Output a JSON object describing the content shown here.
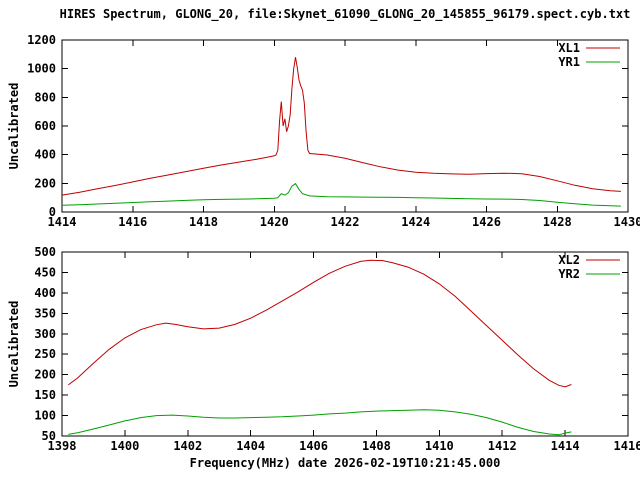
{
  "figure_title": "HIRES Spectrum, GLONG_20, file:Skynet_61090_GLONG_20_145855_96179.spect.cyb.txt",
  "colors": {
    "background": "#ffffff",
    "axis": "#000000",
    "xl_line": "#c00000",
    "yr_line": "#00a000"
  },
  "chart_data": [
    {
      "type": "line",
      "ylabel": "Uncalibrated",
      "xlim": [
        1414,
        1430
      ],
      "ylim": [
        0,
        1200
      ],
      "xticks": [
        1414,
        1416,
        1418,
        1420,
        1422,
        1424,
        1426,
        1428,
        1430
      ],
      "yticks": [
        0,
        200,
        400,
        600,
        800,
        1000,
        1200
      ],
      "grid": false,
      "legend_position": "top-right",
      "series": [
        {
          "name": "XL1",
          "color": "#c00000",
          "points": [
            [
              1414.0,
              118
            ],
            [
              1414.5,
              138
            ],
            [
              1415,
              162
            ],
            [
              1415.5,
              185
            ],
            [
              1416,
              210
            ],
            [
              1416.5,
              235
            ],
            [
              1417,
              258
            ],
            [
              1417.5,
              282
            ],
            [
              1418,
              305
            ],
            [
              1418.5,
              328
            ],
            [
              1419,
              348
            ],
            [
              1419.5,
              368
            ],
            [
              1419.8,
              382
            ],
            [
              1420.0,
              392
            ],
            [
              1420.05,
              398
            ],
            [
              1420.1,
              430
            ],
            [
              1420.15,
              640
            ],
            [
              1420.2,
              770
            ],
            [
              1420.25,
              600
            ],
            [
              1420.3,
              650
            ],
            [
              1420.35,
              560
            ],
            [
              1420.4,
              600
            ],
            [
              1420.45,
              680
            ],
            [
              1420.5,
              860
            ],
            [
              1420.55,
              1000
            ],
            [
              1420.6,
              1080
            ],
            [
              1420.65,
              1010
            ],
            [
              1420.7,
              920
            ],
            [
              1420.75,
              880
            ],
            [
              1420.8,
              850
            ],
            [
              1420.85,
              760
            ],
            [
              1420.9,
              560
            ],
            [
              1420.95,
              430
            ],
            [
              1421.0,
              408
            ],
            [
              1421.5,
              398
            ],
            [
              1422,
              375
            ],
            [
              1422.5,
              345
            ],
            [
              1423,
              315
            ],
            [
              1423.5,
              292
            ],
            [
              1424,
              278
            ],
            [
              1424.5,
              270
            ],
            [
              1425,
              266
            ],
            [
              1425.5,
              263
            ],
            [
              1426,
              268
            ],
            [
              1426.5,
              271
            ],
            [
              1427,
              267
            ],
            [
              1427.5,
              248
            ],
            [
              1428,
              218
            ],
            [
              1428.5,
              186
            ],
            [
              1429,
              162
            ],
            [
              1429.5,
              148
            ],
            [
              1429.8,
              144
            ]
          ]
        },
        {
          "name": "YR1",
          "color": "#00a000",
          "points": [
            [
              1414,
              47
            ],
            [
              1414.5,
              51
            ],
            [
              1415,
              56
            ],
            [
              1415.5,
              61
            ],
            [
              1416,
              66
            ],
            [
              1416.5,
              71
            ],
            [
              1417,
              76
            ],
            [
              1417.5,
              81
            ],
            [
              1418,
              85
            ],
            [
              1418.5,
              88
            ],
            [
              1419,
              90
            ],
            [
              1419.5,
              92
            ],
            [
              1420,
              96
            ],
            [
              1420.1,
              100
            ],
            [
              1420.2,
              128
            ],
            [
              1420.3,
              118
            ],
            [
              1420.4,
              135
            ],
            [
              1420.5,
              180
            ],
            [
              1420.6,
              198
            ],
            [
              1420.7,
              158
            ],
            [
              1420.8,
              128
            ],
            [
              1421,
              112
            ],
            [
              1421.5,
              106
            ],
            [
              1422,
              105
            ],
            [
              1422.5,
              104
            ],
            [
              1423,
              103
            ],
            [
              1423.5,
              102
            ],
            [
              1424,
              100
            ],
            [
              1424.5,
              98
            ],
            [
              1425,
              95
            ],
            [
              1425.5,
              93
            ],
            [
              1426,
              91
            ],
            [
              1426.5,
              90
            ],
            [
              1427,
              87
            ],
            [
              1427.5,
              80
            ],
            [
              1428,
              68
            ],
            [
              1428.5,
              57
            ],
            [
              1429,
              48
            ],
            [
              1429.5,
              43
            ],
            [
              1429.8,
              41
            ]
          ]
        }
      ]
    },
    {
      "type": "line",
      "ylabel": "Uncalibrated",
      "xlabel": "Frequency(MHz) date 2026-02-19T10:21:45.000",
      "xlim": [
        1398,
        1416
      ],
      "ylim": [
        50,
        500
      ],
      "xticks": [
        1398,
        1400,
        1402,
        1404,
        1406,
        1408,
        1410,
        1412,
        1414,
        1416
      ],
      "yticks": [
        50,
        100,
        150,
        200,
        250,
        300,
        350,
        400,
        450,
        500
      ],
      "grid": false,
      "legend_position": "top-right",
      "series": [
        {
          "name": "XL2",
          "color": "#c00000",
          "points": [
            [
              1398.2,
              175
            ],
            [
              1398.5,
              192
            ],
            [
              1399,
              228
            ],
            [
              1399.5,
              262
            ],
            [
              1400,
              290
            ],
            [
              1400.5,
              310
            ],
            [
              1401,
              322
            ],
            [
              1401.3,
              326
            ],
            [
              1401.6,
              323
            ],
            [
              1402,
              317
            ],
            [
              1402.5,
              312
            ],
            [
              1403,
              314
            ],
            [
              1403.5,
              323
            ],
            [
              1404,
              338
            ],
            [
              1404.5,
              358
            ],
            [
              1405,
              380
            ],
            [
              1405.5,
              402
            ],
            [
              1406,
              426
            ],
            [
              1406.5,
              448
            ],
            [
              1407,
              465
            ],
            [
              1407.5,
              477
            ],
            [
              1407.8,
              480
            ],
            [
              1408.2,
              479
            ],
            [
              1408.5,
              474
            ],
            [
              1409,
              463
            ],
            [
              1409.5,
              446
            ],
            [
              1410,
              422
            ],
            [
              1410.5,
              392
            ],
            [
              1411,
              356
            ],
            [
              1411.5,
              320
            ],
            [
              1412,
              284
            ],
            [
              1412.5,
              248
            ],
            [
              1413,
              214
            ],
            [
              1413.5,
              186
            ],
            [
              1413.8,
              174
            ],
            [
              1414,
              170
            ],
            [
              1414.2,
              176
            ]
          ]
        },
        {
          "name": "YR2",
          "color": "#00a000",
          "points": [
            [
              1398.2,
              54
            ],
            [
              1398.5,
              58
            ],
            [
              1399,
              67
            ],
            [
              1399.5,
              77
            ],
            [
              1400,
              87
            ],
            [
              1400.5,
              95
            ],
            [
              1401,
              100
            ],
            [
              1401.5,
              101
            ],
            [
              1402,
              99
            ],
            [
              1402.5,
              96
            ],
            [
              1403,
              94
            ],
            [
              1403.5,
              94
            ],
            [
              1404,
              95
            ],
            [
              1404.5,
              96
            ],
            [
              1405,
              97
            ],
            [
              1405.5,
              99
            ],
            [
              1406,
              101
            ],
            [
              1406.5,
              104
            ],
            [
              1407,
              106
            ],
            [
              1407.5,
              109
            ],
            [
              1408,
              111
            ],
            [
              1408.5,
              112
            ],
            [
              1409,
              113
            ],
            [
              1409.5,
              114
            ],
            [
              1410,
              113
            ],
            [
              1410.5,
              109
            ],
            [
              1411,
              103
            ],
            [
              1411.5,
              95
            ],
            [
              1412,
              84
            ],
            [
              1412.5,
              71
            ],
            [
              1413,
              61
            ],
            [
              1413.5,
              55
            ],
            [
              1413.8,
              53
            ],
            [
              1414,
              57
            ],
            [
              1414.2,
              60
            ]
          ]
        }
      ]
    }
  ]
}
